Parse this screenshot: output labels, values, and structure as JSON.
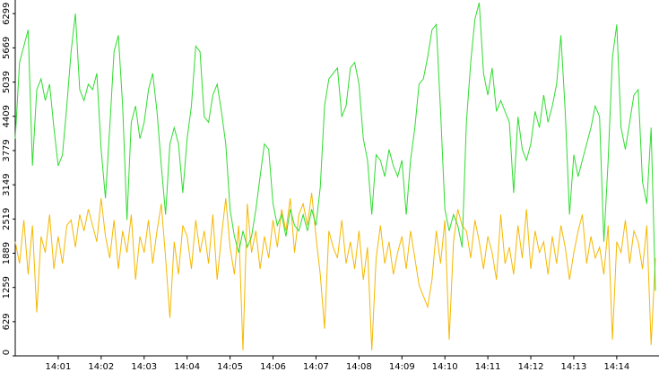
{
  "chart_data": {
    "type": "line",
    "categories": [
      null,
      null,
      null,
      null,
      null,
      null,
      null,
      null,
      null,
      null,
      "14:01",
      null,
      null,
      null,
      null,
      null,
      null,
      null,
      null,
      null,
      "14:02",
      null,
      null,
      null,
      null,
      null,
      null,
      null,
      null,
      null,
      "14:03",
      null,
      null,
      null,
      null,
      null,
      null,
      null,
      null,
      null,
      "14:04",
      null,
      null,
      null,
      null,
      null,
      null,
      null,
      null,
      null,
      "14:05",
      null,
      null,
      null,
      null,
      null,
      null,
      null,
      null,
      null,
      "14:06",
      null,
      null,
      null,
      null,
      null,
      null,
      null,
      null,
      null,
      "14:07",
      null,
      null,
      null,
      null,
      null,
      null,
      null,
      null,
      null,
      "14:08",
      null,
      null,
      null,
      null,
      null,
      null,
      null,
      null,
      null,
      "14:09",
      null,
      null,
      null,
      null,
      null,
      null,
      null,
      null,
      null,
      "14:10",
      null,
      null,
      null,
      null,
      null,
      null,
      null,
      null,
      null,
      "14:11",
      null,
      null,
      null,
      null,
      null,
      null,
      null,
      null,
      null,
      "14:12",
      null,
      null,
      null,
      null,
      null,
      null,
      null,
      null,
      null,
      "14:13",
      null,
      null,
      null,
      null,
      null,
      null,
      null,
      null,
      null,
      "14:14",
      null,
      null,
      null,
      null,
      null,
      null,
      null,
      null,
      null
    ],
    "series": [
      {
        "color": "#2fdc2f",
        "values": [
          4000,
          5400,
          5700,
          6000,
          3500,
          4900,
          5100,
          4700,
          5000,
          4200,
          3500,
          3700,
          4600,
          5600,
          6300,
          4900,
          4700,
          5000,
          4900,
          5200,
          3800,
          2900,
          4200,
          5600,
          5900,
          4600,
          2500,
          4300,
          4600,
          4000,
          4300,
          4900,
          5200,
          4500,
          3500,
          2600,
          3900,
          4200,
          3900,
          3000,
          4000,
          4600,
          5700,
          5600,
          4400,
          4300,
          4800,
          5000,
          4500,
          3900,
          2700,
          2200,
          1900,
          2300,
          2000,
          2200,
          2700,
          3300,
          3900,
          3800,
          2800,
          2400,
          2600,
          2200,
          2700,
          2400,
          2300,
          2600,
          2300,
          2700,
          2400,
          3100,
          4600,
          5100,
          5200,
          5300,
          4400,
          4600,
          5300,
          5400,
          5000,
          4000,
          3600,
          2600,
          3700,
          3600,
          3300,
          3800,
          3500,
          3300,
          3600,
          2600,
          3600,
          4200,
          5000,
          5100,
          5500,
          6000,
          6100,
          4500,
          2700,
          2300,
          2600,
          2400,
          2000,
          4300,
          5400,
          6200,
          6500,
          5200,
          4800,
          5300,
          4500,
          4700,
          4500,
          4300,
          3000,
          4400,
          3800,
          3600,
          3900,
          4500,
          4200,
          4800,
          4300,
          4600,
          5000,
          5900,
          4500,
          2600,
          3700,
          3300,
          3600,
          3900,
          4200,
          4600,
          4400,
          2100,
          3600,
          5500,
          6100,
          4200,
          3800,
          4300,
          4800,
          4900,
          3200,
          2800,
          4200,
          1200
        ]
      },
      {
        "color": "#f5b800",
        "values": [
          2100,
          1700,
          2500,
          1500,
          2400,
          800,
          2200,
          1900,
          2600,
          1600,
          2200,
          1700,
          2400,
          2500,
          2000,
          2600,
          2300,
          2700,
          2400,
          2100,
          2900,
          2200,
          1800,
          2500,
          1600,
          2300,
          1900,
          2600,
          1400,
          2200,
          1900,
          2500,
          1700,
          2300,
          2800,
          1800,
          700,
          2100,
          1500,
          2400,
          2200,
          1600,
          2500,
          1900,
          2300,
          1700,
          2600,
          1400,
          2200,
          2900,
          2000,
          1500,
          2400,
          100,
          2800,
          1900,
          2300,
          1600,
          2200,
          1800,
          2500,
          2000,
          2700,
          2300,
          2900,
          1900,
          2600,
          2800,
          2400,
          3000,
          2200,
          1500,
          500,
          2300,
          2000,
          1800,
          2500,
          1700,
          2100,
          1600,
          2300,
          1400,
          2000,
          100,
          1800,
          2400,
          1700,
          2100,
          1500,
          1900,
          2200,
          1600,
          2300,
          1800,
          1300,
          1100,
          900,
          1400,
          2300,
          1700,
          2500,
          300,
          2100,
          2700,
          2400,
          2300,
          1800,
          2500,
          2100,
          1600,
          2200,
          1900,
          1400,
          2600,
          1700,
          2000,
          1500,
          2400,
          1800,
          2700,
          1600,
          2300,
          1900,
          2100,
          1500,
          2200,
          1700,
          2400,
          2000,
          1400,
          1900,
          2300,
          2600,
          1700,
          2200,
          1800,
          2000,
          1500,
          2400,
          300,
          2100,
          1900,
          2500,
          1700,
          2300,
          2100,
          1600,
          2400,
          200,
          1800
        ]
      }
    ],
    "ylim": [
      0,
      6550
    ],
    "yticks": [
      0,
      629,
      1259,
      1889,
      2519,
      3149,
      3779,
      4409,
      5039,
      5669,
      6299
    ]
  }
}
